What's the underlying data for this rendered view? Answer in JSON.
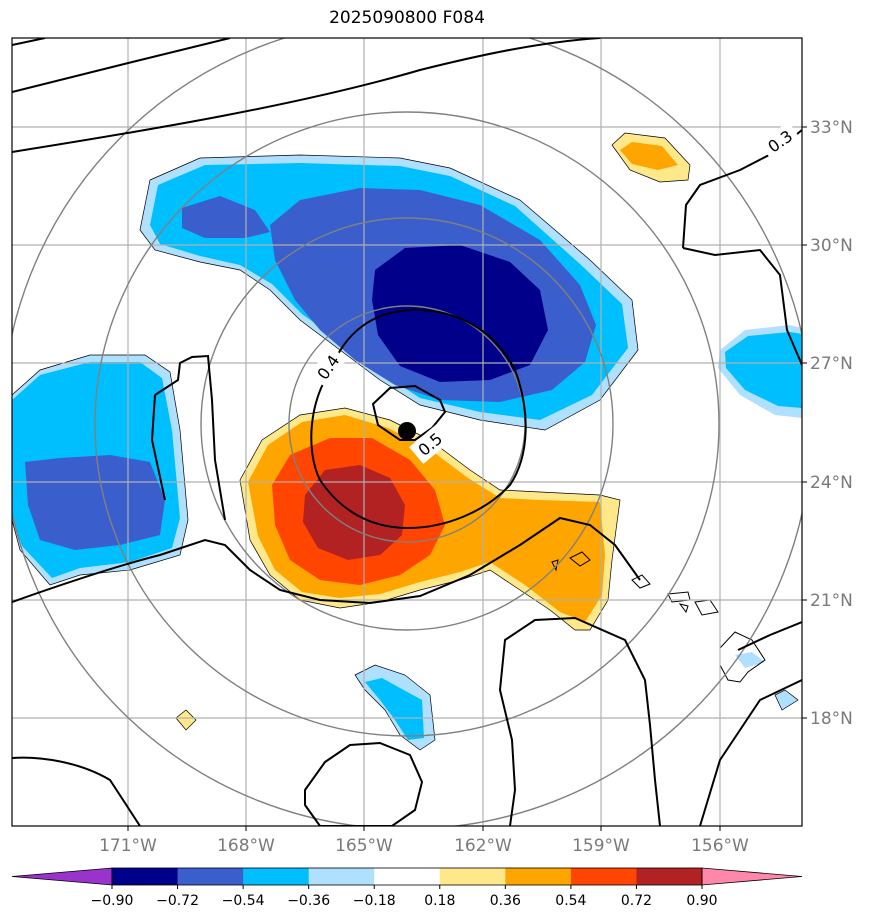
{
  "title": "2025090800 F084",
  "map": {
    "lon_labels": [
      "171°W",
      "168°W",
      "165°W",
      "162°W",
      "159°W",
      "156°W"
    ],
    "lat_labels": [
      "33°N",
      "30°N",
      "27°N",
      "24°N",
      "21°N",
      "18°N"
    ],
    "contour_labels": [
      "0.3",
      "0.4",
      "0.5"
    ],
    "center_marker": "storm-center"
  },
  "colorbar": {
    "ticks": [
      "−0.90",
      "−0.72",
      "−0.54",
      "−0.36",
      "−0.18",
      "0.18",
      "0.36",
      "0.54",
      "0.72",
      "0.90"
    ],
    "colors": [
      "#9933cc",
      "#00008b",
      "#3a5fcd",
      "#00bfff",
      "#b0e0ff",
      "#ffffff",
      "#ffe88a",
      "#ffa500",
      "#ff4500",
      "#b22222",
      "#ff88aa"
    ]
  }
}
